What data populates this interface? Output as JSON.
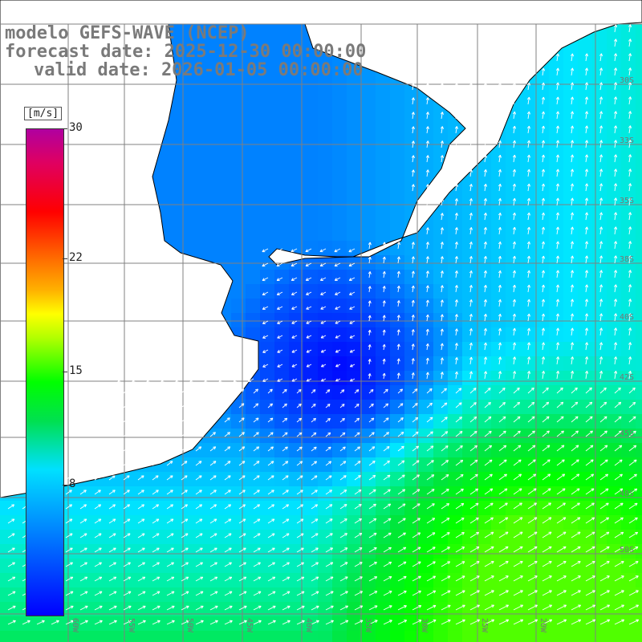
{
  "header": {
    "model": "modelo GEFS-WAVE (NCEP)",
    "forecast_date": "forecast date: 2025-12-30 00:00:00",
    "valid_date": "valid date: 2026-01-05 00:00:00"
  },
  "colorbar": {
    "unit": "[m/s]",
    "min": 0,
    "max": 30,
    "ticks": [
      "30",
      "22",
      "15",
      "8"
    ],
    "tick_values": [
      30,
      22,
      15,
      8
    ]
  },
  "map": {
    "lon_labels": [
      "60W",
      "55W",
      "50W",
      "45W",
      "40W",
      "35W",
      "30W",
      "25W",
      "20W"
    ],
    "lat_labels": [
      "30S",
      "33S",
      "35S",
      "38S",
      "40S",
      "42S",
      "45S",
      "48S",
      "50S"
    ],
    "colors": {
      "land": "#ffffff",
      "coast": "#000000",
      "grid": "#808080",
      "arrow": "#ffffff"
    }
  }
}
